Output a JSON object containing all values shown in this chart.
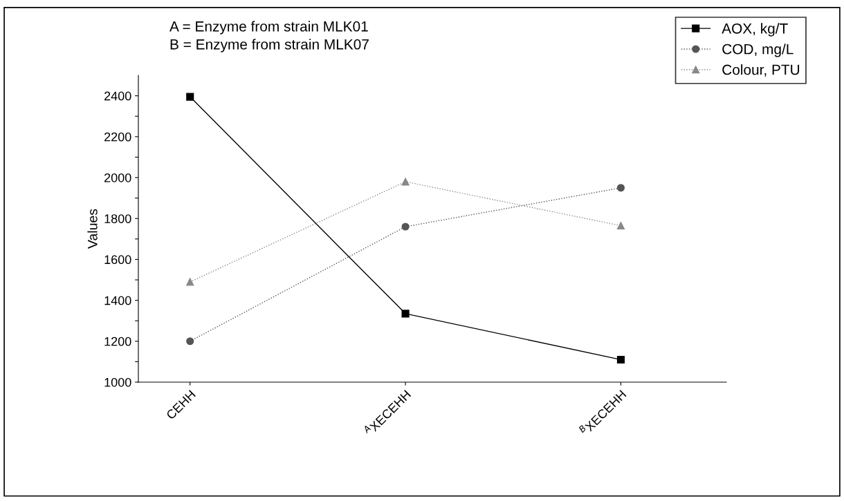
{
  "chart_data": {
    "type": "line",
    "ylabel": "Values",
    "annotations": [
      "A = Enzyme from strain MLK01",
      "B = Enzyme from strain MLK07"
    ],
    "categories": [
      "CEHH",
      "$^{A}$XECEHH",
      "$^{B}$XECEHH"
    ],
    "ylim": [
      1000,
      2500
    ],
    "yticks": [
      1000,
      {
        "value": 1100,
        "label": null
      },
      1200,
      {
        "value": 1300,
        "label": null
      },
      1400,
      {
        "value": 1500,
        "label": null
      },
      1600,
      {
        "value": 1700,
        "label": null
      },
      1800,
      {
        "value": 1900,
        "label": null
      },
      2000,
      {
        "value": 2100,
        "label": null
      },
      2200,
      {
        "value": 2300,
        "label": null
      },
      2400
    ],
    "legend": "top right",
    "grid": false,
    "series": [
      {
        "name": "AOX, kg/T",
        "color": "#000000",
        "marker": "square",
        "line_style": "solid",
        "values": [
          2395,
          1335,
          1110
        ]
      },
      {
        "name": "COD, mg/L",
        "color": "#555555",
        "marker": "circle",
        "line_style": "dotted",
        "values": [
          1200,
          1760,
          1950
        ]
      },
      {
        "name": "Colour, PTU",
        "color": "#888888",
        "marker": "triangle",
        "line_style": "dotted",
        "values": [
          1490,
          1980,
          1765
        ]
      }
    ]
  }
}
